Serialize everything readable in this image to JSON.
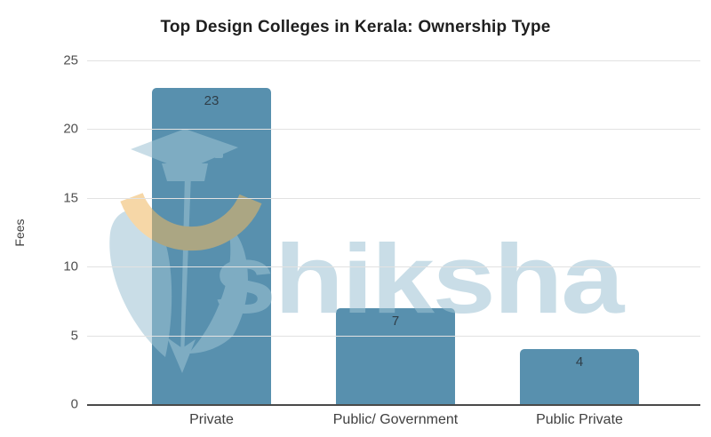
{
  "watermark": {
    "text": "shiksha"
  },
  "colors": {
    "bar": "#5890ae",
    "bar_value_text": "#2f3e48",
    "gridline": "#e2e2e2",
    "axis_line": "#4a4a4a",
    "tick_text": "#4f4f4f",
    "title_text": "#1f1f1f",
    "watermark_blue": "#9dc3d4",
    "watermark_yellow": "#f0b860"
  },
  "chart_data": {
    "type": "bar",
    "categories": [
      "Private",
      "Public/ Government",
      "Public Private"
    ],
    "values": [
      23,
      7,
      4
    ],
    "title": "Top Design Colleges in Kerala: Ownership Type",
    "xlabel": "",
    "ylabel": "Fees",
    "ylim": [
      0,
      25
    ],
    "yticks": [
      0,
      5,
      10,
      15,
      20,
      25
    ],
    "grid": true,
    "legend": false,
    "bar_labels": true
  }
}
